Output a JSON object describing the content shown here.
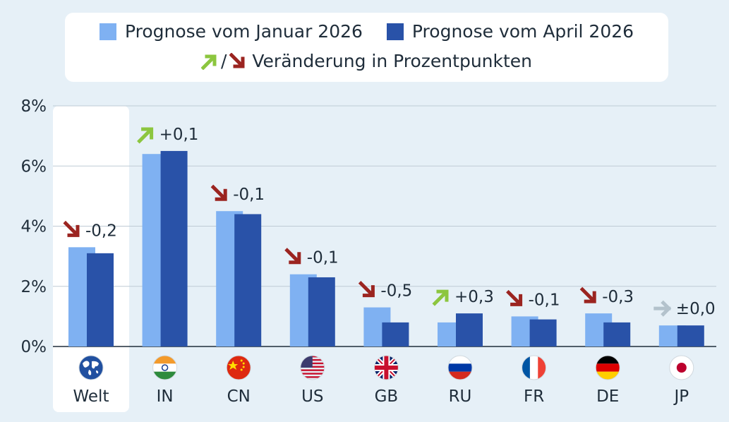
{
  "legend": {
    "january_label": "Prognose vom Januar 2026",
    "april_label": "Prognose vom April 2026",
    "change_separator": "/",
    "change_label": "Veränderung in Prozentpunkten"
  },
  "colors": {
    "january": "#7fb1f2",
    "april": "#2952a8",
    "up": "#8cc63f",
    "down": "#9b2420",
    "neutral": "#b3c2cc",
    "grid": "#bfcbd5",
    "highlight": "#ffffff"
  },
  "chart_data": {
    "type": "bar",
    "categories": [
      "Welt",
      "IN",
      "CN",
      "US",
      "GB",
      "RU",
      "FR",
      "DE",
      "JP"
    ],
    "series": [
      {
        "name": "Prognose vom Januar 2026",
        "values": [
          3.3,
          6.4,
          4.5,
          2.4,
          1.3,
          0.8,
          1.0,
          1.1,
          0.7
        ]
      },
      {
        "name": "Prognose vom April 2026",
        "values": [
          3.1,
          6.5,
          4.4,
          2.3,
          0.8,
          1.1,
          0.9,
          0.8,
          0.7
        ]
      }
    ],
    "changes": [
      "-0,2",
      "+0,1",
      "-0,1",
      "-0,1",
      "-0,5",
      "+0,3",
      "-0,1",
      "-0,3",
      "±0,0"
    ],
    "change_direction": [
      "down",
      "up",
      "down",
      "down",
      "down",
      "up",
      "down",
      "down",
      "neutral"
    ],
    "flags": [
      "globe-icon",
      "india-flag-icon",
      "china-flag-icon",
      "usa-flag-icon",
      "uk-flag-icon",
      "russia-flag-icon",
      "france-flag-icon",
      "germany-flag-icon",
      "japan-flag-icon"
    ],
    "ylim": [
      0,
      8
    ],
    "yticks": [
      "0%",
      "2%",
      "4%",
      "6%",
      "8%"
    ],
    "highlight_category": "Welt",
    "grid": true,
    "legend_position": "top"
  }
}
